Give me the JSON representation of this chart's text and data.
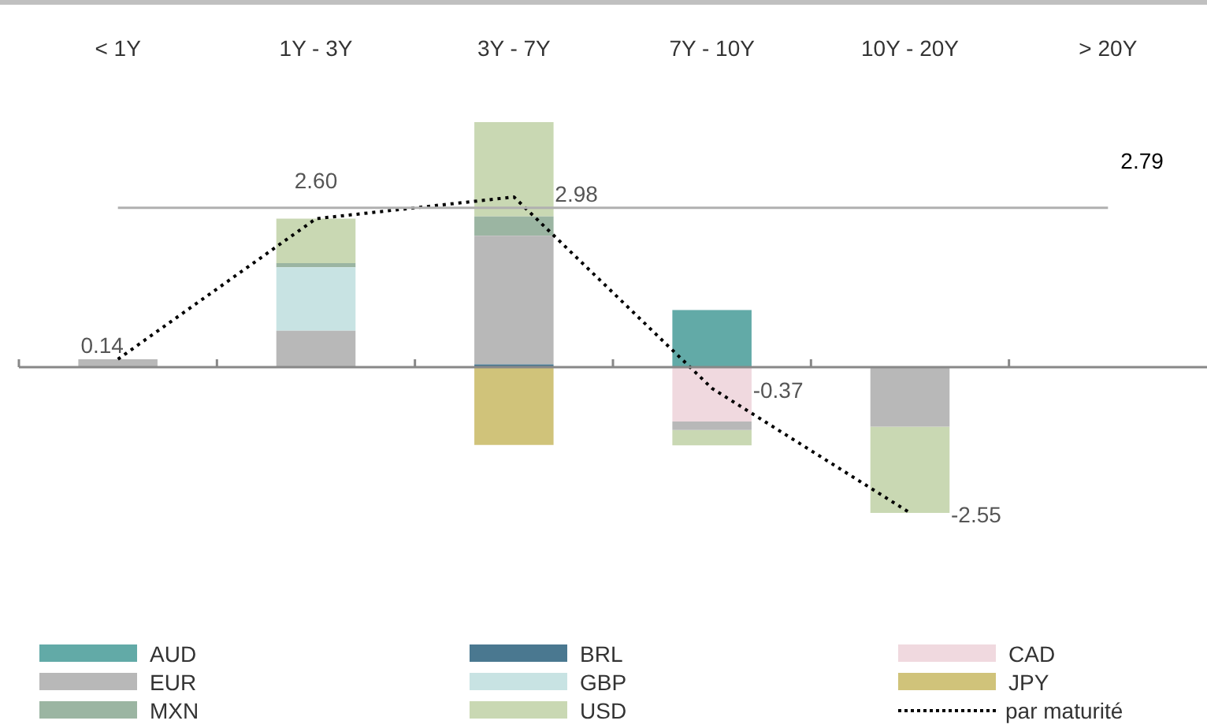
{
  "chart_data": {
    "type": "bar",
    "stacked": true,
    "categories": [
      "< 1Y",
      "1Y - 3Y",
      "3Y - 7Y",
      "7Y - 10Y",
      "10Y - 20Y",
      "> 20Y"
    ],
    "tick_labels": "x",
    "grid": false,
    "legend": "bottom",
    "series": [
      {
        "name": "AUD",
        "color": "#62aaa7",
        "values": [
          null,
          null,
          null,
          1.0,
          null,
          null
        ]
      },
      {
        "name": "BRL",
        "color": "#4a7890",
        "values": [
          null,
          null,
          0.05,
          null,
          null,
          null
        ]
      },
      {
        "name": "CAD",
        "color": "#f0d9df",
        "values": [
          null,
          null,
          null,
          -0.95,
          null,
          null
        ]
      },
      {
        "name": "EUR",
        "color": "#b8b8b8",
        "values": [
          0.14,
          0.64,
          2.25,
          -0.15,
          -1.04,
          null
        ]
      },
      {
        "name": "GBP",
        "color": "#c8e3e3",
        "values": [
          null,
          1.11,
          null,
          null,
          null,
          null
        ]
      },
      {
        "name": "JPY",
        "color": "#d0c37a",
        "values": [
          null,
          null,
          -1.36,
          null,
          null,
          null
        ]
      },
      {
        "name": "MXN",
        "color": "#9bb5a2",
        "values": [
          null,
          0.07,
          0.34,
          null,
          null,
          null
        ]
      },
      {
        "name": "USD",
        "color": "#c9d8b3",
        "values": [
          null,
          0.78,
          1.65,
          -0.27,
          -1.51,
          null
        ]
      },
      {
        "name": "par maturité",
        "type": "line",
        "color": "#000000",
        "line_style": "dotted",
        "marker": "none",
        "values": [
          0.14,
          2.6,
          2.98,
          -0.37,
          -2.55,
          null
        ],
        "value_labels": [
          "0.14",
          "2.60",
          "2.98",
          "-0.37",
          "-2.55",
          null
        ]
      }
    ],
    "ref_lines": [
      {
        "axis": "y",
        "value": 2.79,
        "label": "2.79",
        "color": "#b0b0b0"
      }
    ]
  }
}
